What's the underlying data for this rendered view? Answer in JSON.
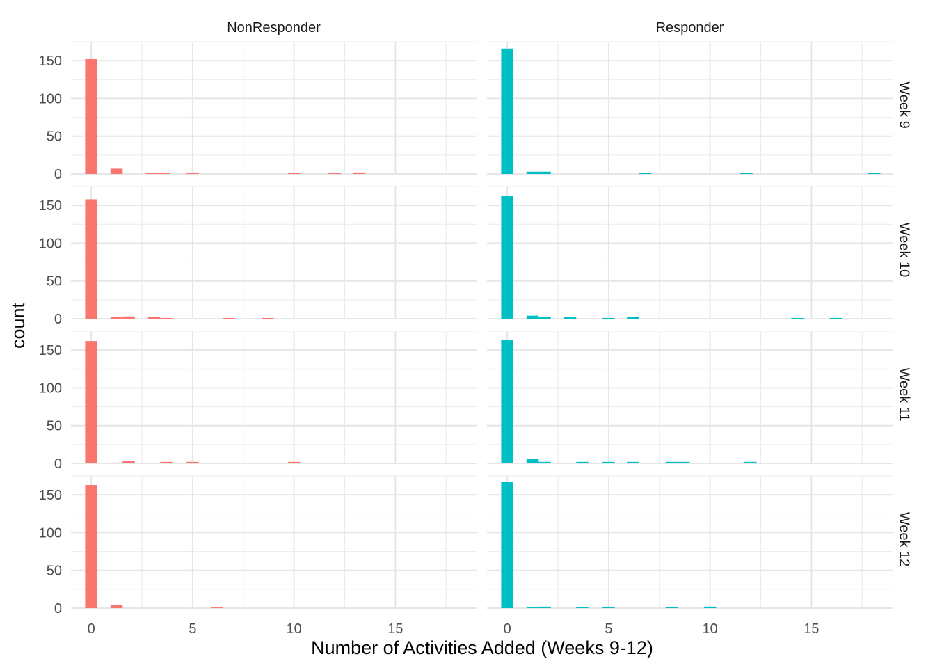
{
  "chart_data": {
    "type": "bar",
    "xlabel": "Number of Activities Added (Weeks 9-12)",
    "ylabel": "count",
    "xlim": [
      -1,
      19
    ],
    "ylim": [
      0,
      175
    ],
    "x_ticks": [
      0,
      5,
      10,
      15
    ],
    "y_ticks": [
      0,
      50,
      100,
      150
    ],
    "bin_width": 0.6,
    "columns": [
      "NonResponder",
      "Responder"
    ],
    "rows": [
      "Week 9",
      "Week 10",
      "Week 11",
      "Week 12"
    ],
    "colors": {
      "NonResponder": "#F8766D",
      "Responder": "#00BFC4"
    },
    "grid": true,
    "legend": "none",
    "panels": [
      {
        "row": "Week 9",
        "column": "NonResponder",
        "bars": [
          [
            0,
            152
          ],
          [
            1.25,
            7
          ],
          [
            3,
            1
          ],
          [
            3.6,
            1
          ],
          [
            5,
            1
          ],
          [
            10,
            1
          ],
          [
            12,
            1
          ],
          [
            13.2,
            2
          ]
        ]
      },
      {
        "row": "Week 9",
        "column": "Responder",
        "bars": [
          [
            0,
            166
          ],
          [
            1.25,
            3
          ],
          [
            1.85,
            3
          ],
          [
            6.8,
            1
          ],
          [
            11.8,
            1
          ],
          [
            18.1,
            1
          ]
        ]
      },
      {
        "row": "Week 10",
        "column": "NonResponder",
        "bars": [
          [
            0,
            158
          ],
          [
            1.25,
            2
          ],
          [
            1.85,
            3
          ],
          [
            3.1,
            2
          ],
          [
            3.7,
            1
          ],
          [
            6.8,
            1
          ],
          [
            8.7,
            1
          ]
        ]
      },
      {
        "row": "Week 10",
        "column": "Responder",
        "bars": [
          [
            0,
            163
          ],
          [
            1.25,
            4
          ],
          [
            1.85,
            2
          ],
          [
            3.1,
            2
          ],
          [
            5,
            1
          ],
          [
            6.2,
            2
          ],
          [
            14.3,
            1
          ],
          [
            16.2,
            1
          ]
        ]
      },
      {
        "row": "Week 11",
        "column": "NonResponder",
        "bars": [
          [
            0,
            162
          ],
          [
            1.25,
            1
          ],
          [
            1.85,
            3
          ],
          [
            3.7,
            2
          ],
          [
            5,
            2
          ],
          [
            10,
            2
          ]
        ]
      },
      {
        "row": "Week 11",
        "column": "Responder",
        "bars": [
          [
            0,
            163
          ],
          [
            1.25,
            6
          ],
          [
            1.85,
            2
          ],
          [
            3.7,
            2
          ],
          [
            5,
            2
          ],
          [
            6.2,
            2
          ],
          [
            8.1,
            2
          ],
          [
            8.7,
            2
          ],
          [
            12,
            2
          ]
        ]
      },
      {
        "row": "Week 12",
        "column": "NonResponder",
        "bars": [
          [
            0,
            163
          ],
          [
            1.25,
            4
          ],
          [
            6.2,
            1
          ]
        ]
      },
      {
        "row": "Week 12",
        "column": "Responder",
        "bars": [
          [
            0,
            167
          ],
          [
            1.25,
            1
          ],
          [
            1.85,
            2
          ],
          [
            3.7,
            1
          ],
          [
            5,
            1
          ],
          [
            8.1,
            1
          ],
          [
            10,
            2
          ]
        ]
      }
    ]
  }
}
